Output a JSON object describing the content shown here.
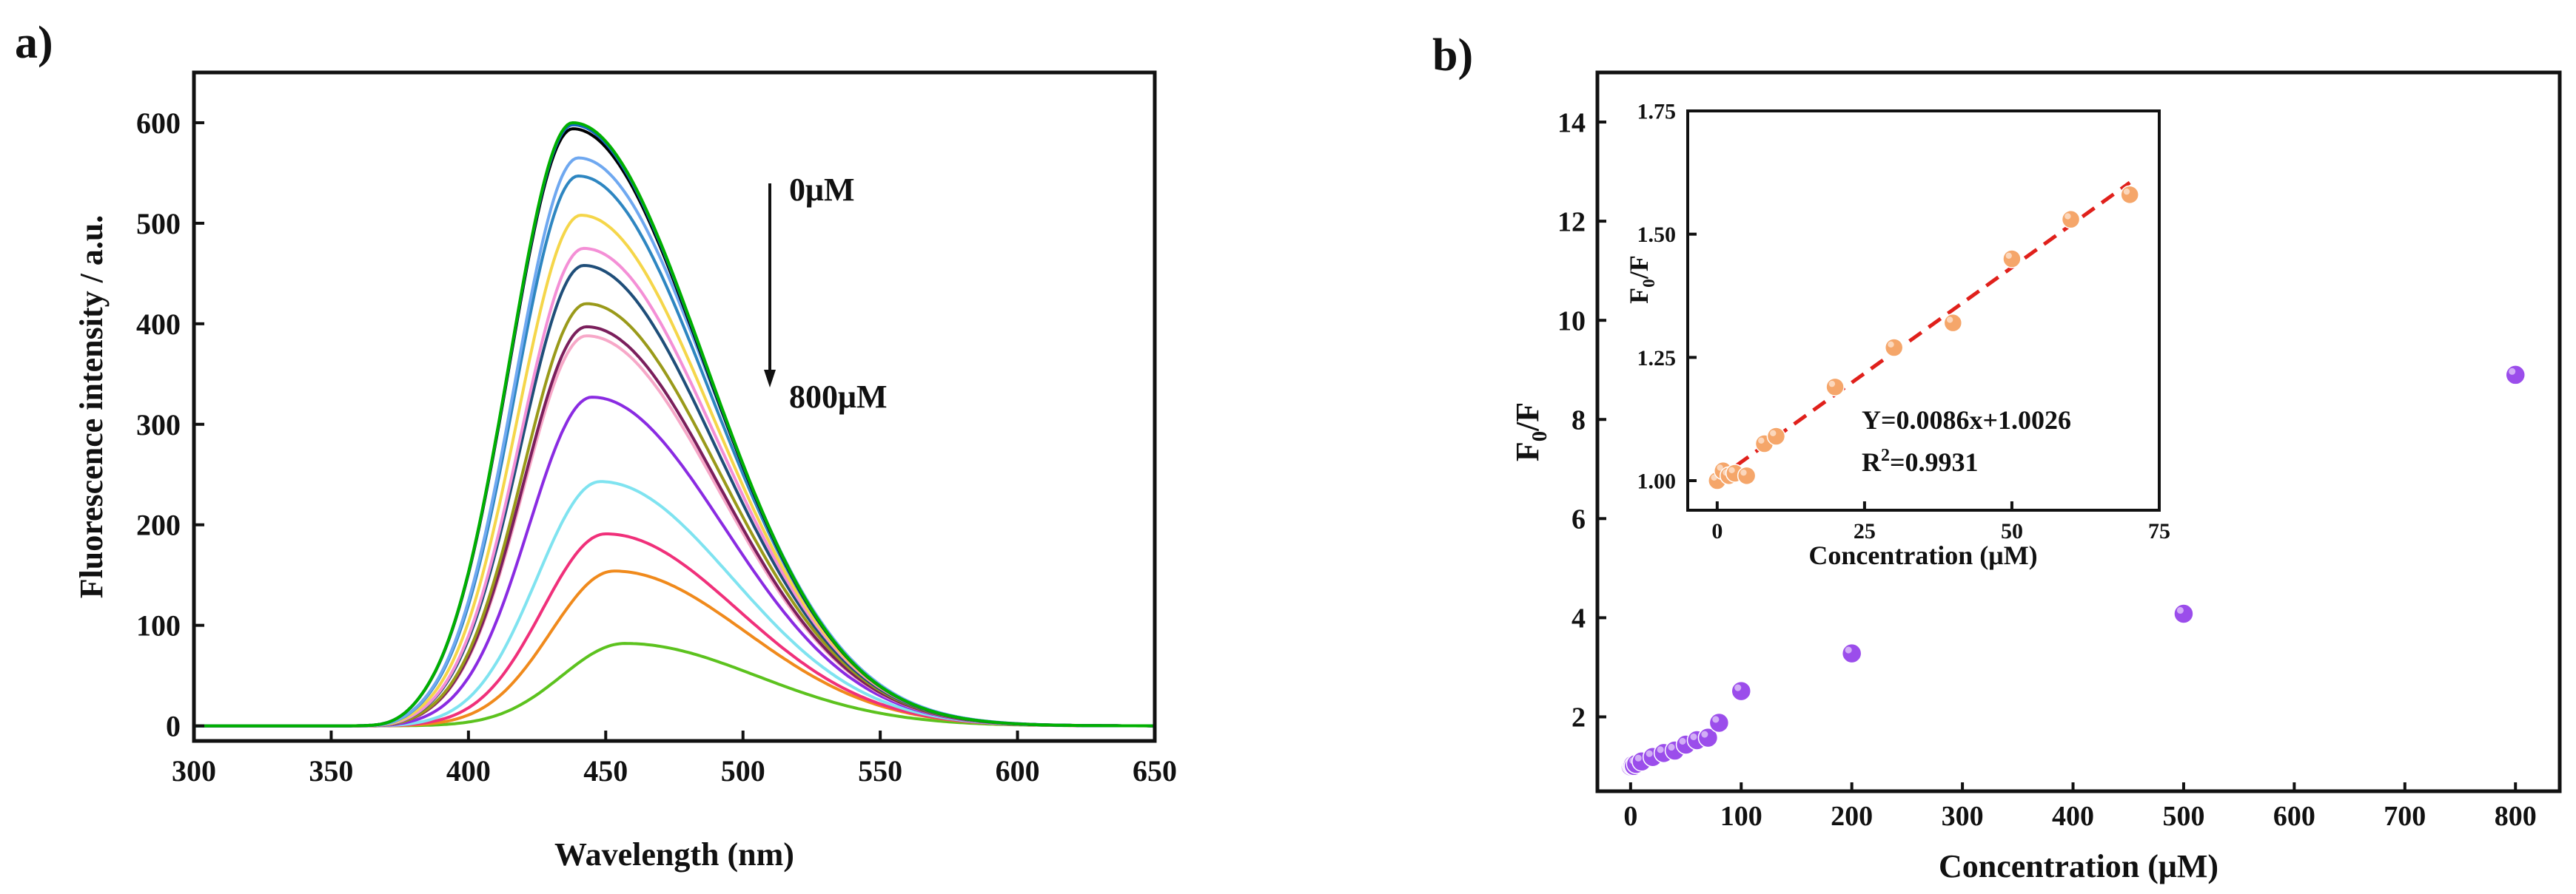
{
  "panel_a": {
    "label": "a)",
    "annotation_top": "0μM",
    "annotation_bottom": "800μM"
  },
  "panel_b": {
    "label": "b)",
    "inset_equation": "Y=0.0086x+1.0026",
    "inset_r2_prefix": "R",
    "inset_r2_exp": "2",
    "inset_r2_value": "=0.9931"
  },
  "chart_data": [
    {
      "type": "line",
      "title": "",
      "xlabel": "Wavelength (nm)",
      "ylabel": "Fluorescence intensity / a.u.",
      "xlim": [
        300,
        650
      ],
      "ylim": [
        -15,
        650
      ],
      "xticks": [
        300,
        350,
        400,
        450,
        500,
        550,
        600,
        650
      ],
      "yticks": [
        0,
        100,
        200,
        300,
        400,
        500,
        600
      ],
      "legend": "none",
      "series": [
        {
          "name": "c1",
          "color": "#00B000",
          "peak": 600,
          "center": 438
        },
        {
          "name": "c2",
          "color": "#1565C0",
          "peak": 598,
          "center": 438
        },
        {
          "name": "c3",
          "color": "#000000",
          "peak": 594,
          "center": 438
        },
        {
          "name": "c4",
          "color": "#6FA8F0",
          "peak": 565,
          "center": 440
        },
        {
          "name": "c5",
          "color": "#2E86C1",
          "peak": 547,
          "center": 440
        },
        {
          "name": "c6",
          "color": "#F5D64A",
          "peak": 508,
          "center": 441
        },
        {
          "name": "c7",
          "color": "#F48FD6",
          "peak": 475,
          "center": 442
        },
        {
          "name": "c8",
          "color": "#1F4E79",
          "peak": 458,
          "center": 442
        },
        {
          "name": "c9",
          "color": "#9A9A1A",
          "peak": 420,
          "center": 443
        },
        {
          "name": "c10",
          "color": "#7B1F5C",
          "peak": 397,
          "center": 443
        },
        {
          "name": "c11",
          "color": "#F7A8C8",
          "peak": 388,
          "center": 443
        },
        {
          "name": "c12",
          "color": "#8A2BE2",
          "peak": 327,
          "center": 445
        },
        {
          "name": "c13",
          "color": "#7FE3F0",
          "peak": 243,
          "center": 448
        },
        {
          "name": "c14",
          "color": "#F0307A",
          "peak": 191,
          "center": 450
        },
        {
          "name": "c15",
          "color": "#F08A1C",
          "peak": 154,
          "center": 453
        },
        {
          "name": "c16",
          "color": "#5CC21E",
          "peak": 82,
          "center": 457
        }
      ]
    },
    {
      "type": "scatter",
      "title": "",
      "xlabel": "Concentration (μM)",
      "ylabel": "F0/F",
      "ylabel_main": "F",
      "ylabel_sub": "0",
      "ylabel_rest": "/F",
      "xlim": [
        -30,
        840
      ],
      "ylim": [
        0.5,
        15
      ],
      "xticks": [
        0,
        100,
        200,
        300,
        400,
        500,
        600,
        700,
        800
      ],
      "yticks": [
        2,
        4,
        6,
        8,
        10,
        12,
        14
      ],
      "marker_color": "#9B4DEB",
      "x": [
        0,
        1,
        2,
        3,
        5,
        10,
        20,
        30,
        40,
        50,
        60,
        70,
        80,
        100,
        200,
        500,
        800
      ],
      "y": [
        1.0,
        1.02,
        1.03,
        1.01,
        1.05,
        1.1,
        1.19,
        1.27,
        1.32,
        1.44,
        1.53,
        1.58,
        1.88,
        2.52,
        3.28,
        4.08,
        8.9
      ]
    },
    {
      "type": "scatter",
      "title": "inset",
      "xlabel": "Concentration (μM)",
      "ylabel": "F0/F",
      "ylabel_main": "F",
      "ylabel_sub": "0",
      "ylabel_rest": "/F",
      "xlim": [
        -5,
        75
      ],
      "ylim": [
        0.94,
        1.75
      ],
      "xticks": [
        0,
        25,
        50,
        75
      ],
      "yticks": [
        "1.00",
        "1.25",
        "1.50",
        "1.75"
      ],
      "marker_color": "#F5A66A",
      "fit_color": "#E0201B",
      "fit": {
        "slope": 0.0086,
        "intercept": 1.0026
      },
      "x": [
        0,
        1,
        2,
        3,
        5,
        8,
        10,
        20,
        30,
        40,
        50,
        60,
        70
      ],
      "y": [
        1.0,
        1.02,
        1.01,
        1.015,
        1.01,
        1.075,
        1.09,
        1.19,
        1.27,
        1.32,
        1.45,
        1.53,
        1.58
      ]
    }
  ]
}
